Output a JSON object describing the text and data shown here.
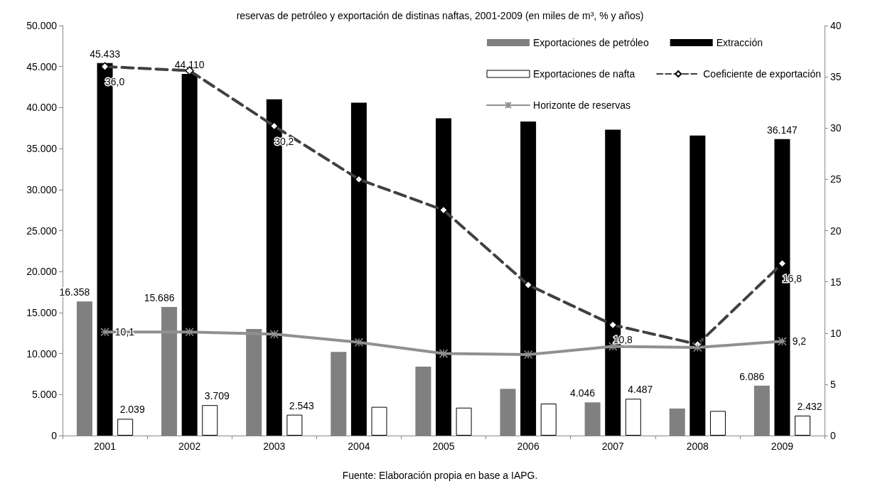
{
  "chart_data": {
    "type": "bar",
    "title": "reservas de petróleo y exportación de distinas naftas, 2001-2009 (en miles de m³, % y años)",
    "categories": [
      "2001",
      "2002",
      "2003",
      "2004",
      "2005",
      "2006",
      "2007",
      "2008",
      "2009"
    ],
    "series": [
      {
        "name": "Exportaciones de petróleo",
        "color": "#808080",
        "values": [
          16358,
          15686,
          13000,
          10200,
          8400,
          5700,
          4046,
          3300,
          6086
        ],
        "value_labels": [
          "16.358",
          "15.686",
          null,
          null,
          null,
          null,
          "4.046",
          null,
          "6.086"
        ]
      },
      {
        "name": "Extracción",
        "color": "#000000",
        "values": [
          45433,
          44110,
          41000,
          40600,
          38700,
          38300,
          37300,
          36600,
          36147
        ],
        "value_labels": [
          "45.433",
          "44.110",
          null,
          null,
          null,
          null,
          null,
          null,
          "36.147"
        ]
      },
      {
        "name": "Exportaciones de nafta",
        "color": "#ffffff",
        "values": [
          2039,
          3709,
          2543,
          3500,
          3400,
          3900,
          4487,
          3000,
          2432
        ],
        "value_labels": [
          "2.039",
          "3.709",
          "2.543",
          null,
          null,
          null,
          "4.487",
          null,
          "2.432"
        ]
      },
      {
        "name": "Coeficiente de exportación",
        "type": "line",
        "axis": "y2",
        "color": "#404040",
        "marker": "diamond",
        "line_style": "dashed",
        "values": [
          36.0,
          35.6,
          30.2,
          25.0,
          22.0,
          14.7,
          10.8,
          8.9,
          16.8
        ],
        "value_labels": [
          "36,0",
          null,
          "30,2",
          null,
          null,
          null,
          "10,8",
          null,
          "16,8"
        ]
      },
      {
        "name": "Horizonte de reservas",
        "type": "line",
        "axis": "y2",
        "color": "#909090",
        "marker": "cross",
        "line_style": "solid",
        "values": [
          10.1,
          10.1,
          9.9,
          9.1,
          8.0,
          7.9,
          8.7,
          8.6,
          9.2
        ],
        "value_labels": [
          "10,1",
          null,
          null,
          null,
          null,
          null,
          null,
          null,
          "9,2"
        ]
      }
    ],
    "ylim": [
      0,
      50000
    ],
    "yticks": [
      0,
      {
        "value": 5000,
        "label": "5.000"
      },
      {
        "value": 10000,
        "label": "10.000"
      },
      {
        "value": 15000,
        "label": "15.000"
      },
      {
        "value": 20000,
        "label": "20.000"
      },
      {
        "value": 25000,
        "label": "25.000"
      },
      {
        "value": 30000,
        "label": "30.000"
      },
      {
        "value": 35000,
        "label": "35.000"
      },
      {
        "value": 40000,
        "label": "40.000"
      },
      {
        "value": 45000,
        "label": "45.000"
      },
      {
        "value": 50000,
        "label": "50.000"
      }
    ],
    "y2lim": [
      0,
      40
    ],
    "y2ticks": [
      0,
      5,
      10,
      15,
      20,
      25,
      30,
      35,
      40
    ],
    "grid": false,
    "legend": "top right",
    "annotations": [
      "Fuente: Elaboración propia en base a IAPG."
    ]
  }
}
